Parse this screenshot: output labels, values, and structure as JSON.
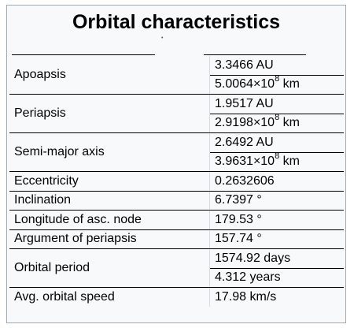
{
  "title": "Orbital characteristics",
  "rows": [
    {
      "label": "Apoapsis",
      "values": [
        {
          "text": "3.3466 AU"
        },
        {
          "pre": "5.0064×10",
          "exp": "8",
          "post": " km"
        }
      ]
    },
    {
      "label": "Periapsis",
      "values": [
        {
          "text": "1.9517 AU"
        },
        {
          "pre": "2.9198×10",
          "exp": "8",
          "post": " km"
        }
      ]
    },
    {
      "label": "Semi-major axis",
      "values": [
        {
          "text": "2.6492 AU"
        },
        {
          "pre": "3.9631×10",
          "exp": "8",
          "post": " km"
        }
      ]
    },
    {
      "label": "Eccentricity",
      "values": [
        {
          "text": "0.2632606"
        }
      ]
    },
    {
      "label": "Inclination",
      "values": [
        {
          "text": "6.7397 °"
        }
      ]
    },
    {
      "label": "Longitude of asc. node",
      "values": [
        {
          "text": "179.53 °"
        }
      ]
    },
    {
      "label": "Argument of periapsis",
      "values": [
        {
          "text": "157.74 °"
        }
      ]
    },
    {
      "label": "Orbital period",
      "values": [
        {
          "text": "1574.92 days"
        },
        {
          "text": "4.312 years"
        }
      ]
    },
    {
      "label": "Avg. orbital speed",
      "values": [
        {
          "text": "17.98 km/s"
        }
      ]
    }
  ]
}
